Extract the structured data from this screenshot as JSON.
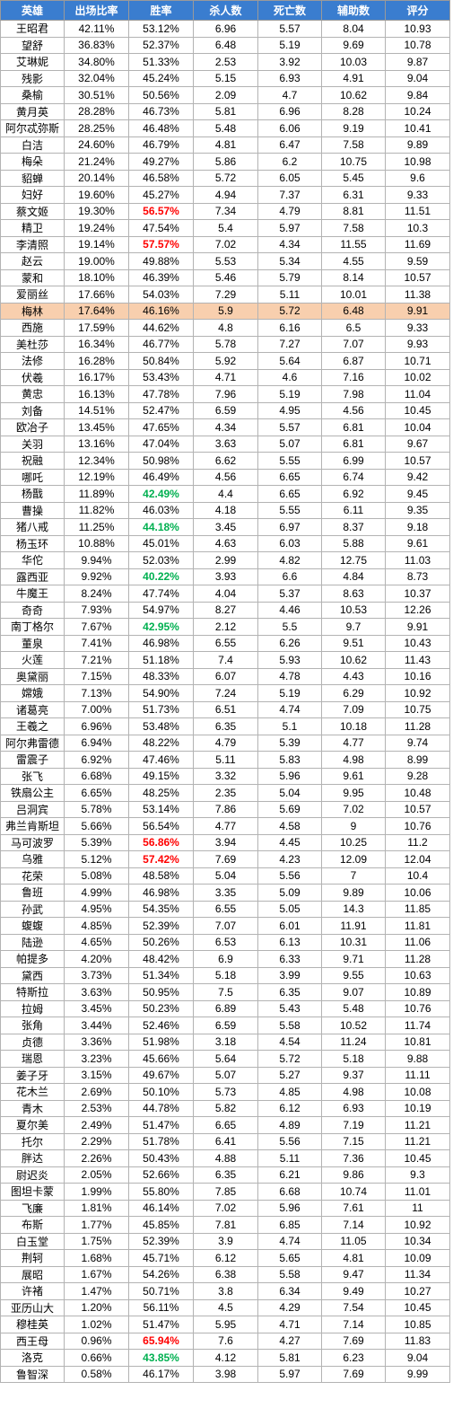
{
  "table": {
    "headers": [
      "英雄",
      "出场比率",
      "胜率",
      "杀人数",
      "死亡数",
      "辅助数",
      "评分"
    ],
    "highlight_color": "#f8cfae",
    "red_text_color": "#ff0000",
    "green_text_color": "#00b050",
    "rows": [
      {
        "cells": [
          "王昭君",
          "42.11%",
          "53.12%",
          "6.96",
          "5.57",
          "8.04",
          "10.93"
        ]
      },
      {
        "cells": [
          "望舒",
          "36.83%",
          "52.37%",
          "6.48",
          "5.19",
          "9.69",
          "10.78"
        ]
      },
      {
        "cells": [
          "艾琳妮",
          "34.80%",
          "51.33%",
          "2.53",
          "3.92",
          "10.03",
          "9.87"
        ]
      },
      {
        "cells": [
          "残影",
          "32.04%",
          "45.24%",
          "5.15",
          "6.93",
          "4.91",
          "9.04"
        ]
      },
      {
        "cells": [
          "桑榆",
          "30.51%",
          "50.56%",
          "2.09",
          "4.7",
          "10.62",
          "9.84"
        ]
      },
      {
        "cells": [
          "黄月英",
          "28.28%",
          "46.73%",
          "5.81",
          "6.96",
          "8.28",
          "10.24"
        ]
      },
      {
        "cells": [
          "阿尔忒弥斯",
          "28.25%",
          "46.48%",
          "5.48",
          "6.06",
          "9.19",
          "10.41"
        ]
      },
      {
        "cells": [
          "白洁",
          "24.60%",
          "46.79%",
          "4.81",
          "6.47",
          "7.58",
          "9.89"
        ]
      },
      {
        "cells": [
          "梅朵",
          "21.24%",
          "49.27%",
          "5.86",
          "6.2",
          "10.75",
          "10.98"
        ]
      },
      {
        "cells": [
          "貂蝉",
          "20.14%",
          "46.58%",
          "5.72",
          "6.05",
          "5.45",
          "9.6"
        ]
      },
      {
        "cells": [
          "妇好",
          "19.60%",
          "45.27%",
          "4.94",
          "7.37",
          "6.31",
          "9.33"
        ]
      },
      {
        "cells": [
          "蔡文姬",
          "19.30%",
          "56.57%",
          "7.34",
          "4.79",
          "8.81",
          "11.51"
        ],
        "winrate_color": "red"
      },
      {
        "cells": [
          "精卫",
          "19.24%",
          "47.54%",
          "5.4",
          "5.97",
          "7.58",
          "10.3"
        ]
      },
      {
        "cells": [
          "李清照",
          "19.14%",
          "57.57%",
          "7.02",
          "4.34",
          "11.55",
          "11.69"
        ],
        "winrate_color": "red"
      },
      {
        "cells": [
          "赵云",
          "19.00%",
          "49.88%",
          "5.53",
          "5.34",
          "4.55",
          "9.59"
        ]
      },
      {
        "cells": [
          "蒙和",
          "18.10%",
          "46.39%",
          "5.46",
          "5.79",
          "8.14",
          "10.57"
        ]
      },
      {
        "cells": [
          "爱丽丝",
          "17.66%",
          "54.03%",
          "7.29",
          "5.11",
          "10.01",
          "11.38"
        ]
      },
      {
        "cells": [
          "梅林",
          "17.64%",
          "46.16%",
          "5.9",
          "5.72",
          "6.48",
          "9.91"
        ],
        "highlight": true
      },
      {
        "cells": [
          "西施",
          "17.59%",
          "44.62%",
          "4.8",
          "6.16",
          "6.5",
          "9.33"
        ]
      },
      {
        "cells": [
          "美杜莎",
          "16.34%",
          "46.77%",
          "5.78",
          "7.27",
          "7.07",
          "9.93"
        ]
      },
      {
        "cells": [
          "法修",
          "16.28%",
          "50.84%",
          "5.92",
          "5.64",
          "6.87",
          "10.71"
        ]
      },
      {
        "cells": [
          "伏羲",
          "16.17%",
          "53.43%",
          "4.71",
          "4.6",
          "7.16",
          "10.02"
        ]
      },
      {
        "cells": [
          "黄忠",
          "16.13%",
          "47.78%",
          "7.96",
          "5.19",
          "7.98",
          "11.04"
        ]
      },
      {
        "cells": [
          "刘备",
          "14.51%",
          "52.47%",
          "6.59",
          "4.95",
          "4.56",
          "10.45"
        ]
      },
      {
        "cells": [
          "欧冶子",
          "13.45%",
          "47.65%",
          "4.34",
          "5.57",
          "6.81",
          "10.04"
        ]
      },
      {
        "cells": [
          "关羽",
          "13.16%",
          "47.04%",
          "3.63",
          "5.07",
          "6.81",
          "9.67"
        ]
      },
      {
        "cells": [
          "祝融",
          "12.34%",
          "50.98%",
          "6.62",
          "5.55",
          "6.99",
          "10.57"
        ]
      },
      {
        "cells": [
          "哪吒",
          "12.19%",
          "46.49%",
          "4.56",
          "6.65",
          "6.74",
          "9.42"
        ]
      },
      {
        "cells": [
          "杨戬",
          "11.89%",
          "42.49%",
          "4.4",
          "6.65",
          "6.92",
          "9.45"
        ],
        "winrate_color": "green"
      },
      {
        "cells": [
          "曹操",
          "11.82%",
          "46.03%",
          "4.18",
          "5.55",
          "6.11",
          "9.35"
        ]
      },
      {
        "cells": [
          "猪八戒",
          "11.25%",
          "44.18%",
          "3.45",
          "6.97",
          "8.37",
          "9.18"
        ],
        "winrate_color": "green"
      },
      {
        "cells": [
          "杨玉环",
          "10.88%",
          "45.01%",
          "4.63",
          "6.03",
          "5.88",
          "9.61"
        ]
      },
      {
        "cells": [
          "华佗",
          "9.94%",
          "52.03%",
          "2.99",
          "4.82",
          "12.75",
          "11.03"
        ]
      },
      {
        "cells": [
          "露西亚",
          "9.92%",
          "40.22%",
          "3.93",
          "6.6",
          "4.84",
          "8.73"
        ],
        "winrate_color": "green"
      },
      {
        "cells": [
          "牛魔王",
          "8.24%",
          "47.74%",
          "4.04",
          "5.37",
          "8.63",
          "10.37"
        ]
      },
      {
        "cells": [
          "奇奇",
          "7.93%",
          "54.97%",
          "8.27",
          "4.46",
          "10.53",
          "12.26"
        ]
      },
      {
        "cells": [
          "南丁格尔",
          "7.67%",
          "42.95%",
          "2.12",
          "5.5",
          "9.7",
          "9.91"
        ],
        "winrate_color": "green"
      },
      {
        "cells": [
          "董泉",
          "7.41%",
          "46.98%",
          "6.55",
          "6.26",
          "9.51",
          "10.43"
        ]
      },
      {
        "cells": [
          "火莲",
          "7.21%",
          "51.18%",
          "7.4",
          "5.93",
          "10.62",
          "11.43"
        ]
      },
      {
        "cells": [
          "奥黛丽",
          "7.15%",
          "48.33%",
          "6.07",
          "4.78",
          "4.43",
          "10.16"
        ]
      },
      {
        "cells": [
          "嫦娥",
          "7.13%",
          "54.90%",
          "7.24",
          "5.19",
          "6.29",
          "10.92"
        ]
      },
      {
        "cells": [
          "诸葛亮",
          "7.00%",
          "51.73%",
          "6.51",
          "4.74",
          "7.09",
          "10.75"
        ]
      },
      {
        "cells": [
          "王羲之",
          "6.96%",
          "53.48%",
          "6.35",
          "5.1",
          "10.18",
          "11.28"
        ]
      },
      {
        "cells": [
          "阿尔弗雷德",
          "6.94%",
          "48.22%",
          "4.79",
          "5.39",
          "4.77",
          "9.74"
        ]
      },
      {
        "cells": [
          "雷震子",
          "6.92%",
          "47.46%",
          "5.11",
          "5.83",
          "4.98",
          "8.99"
        ]
      },
      {
        "cells": [
          "张飞",
          "6.68%",
          "49.15%",
          "3.32",
          "5.96",
          "9.61",
          "9.28"
        ]
      },
      {
        "cells": [
          "铁扇公主",
          "6.65%",
          "48.25%",
          "2.35",
          "5.04",
          "9.95",
          "10.48"
        ]
      },
      {
        "cells": [
          "吕洞宾",
          "5.78%",
          "53.14%",
          "7.86",
          "5.69",
          "7.02",
          "10.57"
        ]
      },
      {
        "cells": [
          "弗兰肯斯坦",
          "5.66%",
          "56.54%",
          "4.77",
          "4.58",
          "9",
          "10.76"
        ]
      },
      {
        "cells": [
          "马可波罗",
          "5.39%",
          "56.86%",
          "3.94",
          "4.45",
          "10.25",
          "11.2"
        ],
        "winrate_color": "red"
      },
      {
        "cells": [
          "乌雅",
          "5.12%",
          "57.42%",
          "7.69",
          "4.23",
          "12.09",
          "12.04"
        ],
        "winrate_color": "red"
      },
      {
        "cells": [
          "花荣",
          "5.08%",
          "48.58%",
          "5.04",
          "5.56",
          "7",
          "10.4"
        ]
      },
      {
        "cells": [
          "鲁班",
          "4.99%",
          "46.98%",
          "3.35",
          "5.09",
          "9.89",
          "10.06"
        ]
      },
      {
        "cells": [
          "孙武",
          "4.95%",
          "54.35%",
          "6.55",
          "5.05",
          "14.3",
          "11.85"
        ]
      },
      {
        "cells": [
          "蝮蝮",
          "4.85%",
          "52.39%",
          "7.07",
          "6.01",
          "11.91",
          "11.81"
        ]
      },
      {
        "cells": [
          "陆逊",
          "4.65%",
          "50.26%",
          "6.53",
          "6.13",
          "10.31",
          "11.06"
        ]
      },
      {
        "cells": [
          "帕提多",
          "4.20%",
          "48.42%",
          "6.9",
          "6.33",
          "9.71",
          "11.28"
        ]
      },
      {
        "cells": [
          "黛西",
          "3.73%",
          "51.34%",
          "5.18",
          "3.99",
          "9.55",
          "10.63"
        ]
      },
      {
        "cells": [
          "特斯拉",
          "3.63%",
          "50.95%",
          "7.5",
          "6.35",
          "9.07",
          "10.89"
        ]
      },
      {
        "cells": [
          "拉姆",
          "3.45%",
          "50.23%",
          "6.89",
          "5.43",
          "5.48",
          "10.76"
        ]
      },
      {
        "cells": [
          "张角",
          "3.44%",
          "52.46%",
          "6.59",
          "5.58",
          "10.52",
          "11.74"
        ]
      },
      {
        "cells": [
          "贞德",
          "3.36%",
          "51.98%",
          "3.18",
          "4.54",
          "11.24",
          "10.81"
        ]
      },
      {
        "cells": [
          "瑞恩",
          "3.23%",
          "45.66%",
          "5.64",
          "5.72",
          "5.18",
          "9.88"
        ]
      },
      {
        "cells": [
          "姜子牙",
          "3.15%",
          "49.67%",
          "5.07",
          "5.27",
          "9.37",
          "11.11"
        ]
      },
      {
        "cells": [
          "花木兰",
          "2.69%",
          "50.10%",
          "5.73",
          "4.85",
          "4.98",
          "10.08"
        ]
      },
      {
        "cells": [
          "青木",
          "2.53%",
          "44.78%",
          "5.82",
          "6.12",
          "6.93",
          "10.19"
        ]
      },
      {
        "cells": [
          "夏尔美",
          "2.49%",
          "51.47%",
          "6.65",
          "4.89",
          "7.19",
          "11.21"
        ]
      },
      {
        "cells": [
          "托尔",
          "2.29%",
          "51.78%",
          "6.41",
          "5.56",
          "7.15",
          "11.21"
        ]
      },
      {
        "cells": [
          "胖达",
          "2.26%",
          "50.43%",
          "4.88",
          "5.11",
          "7.36",
          "10.45"
        ]
      },
      {
        "cells": [
          "尉迟炎",
          "2.05%",
          "52.66%",
          "6.35",
          "6.21",
          "9.86",
          "9.3"
        ]
      },
      {
        "cells": [
          "图坦卡蒙",
          "1.99%",
          "55.80%",
          "7.85",
          "6.68",
          "10.74",
          "11.01"
        ]
      },
      {
        "cells": [
          "飞廉",
          "1.81%",
          "46.14%",
          "7.02",
          "5.96",
          "7.61",
          "11"
        ]
      },
      {
        "cells": [
          "布斯",
          "1.77%",
          "45.85%",
          "7.81",
          "6.85",
          "7.14",
          "10.92"
        ]
      },
      {
        "cells": [
          "白玉堂",
          "1.75%",
          "52.39%",
          "3.9",
          "4.74",
          "11.05",
          "10.34"
        ]
      },
      {
        "cells": [
          "荆轲",
          "1.68%",
          "45.71%",
          "6.12",
          "5.65",
          "4.81",
          "10.09"
        ]
      },
      {
        "cells": [
          "展昭",
          "1.67%",
          "54.26%",
          "6.38",
          "5.58",
          "9.47",
          "11.34"
        ]
      },
      {
        "cells": [
          "许褚",
          "1.47%",
          "50.71%",
          "3.8",
          "6.34",
          "9.49",
          "10.27"
        ]
      },
      {
        "cells": [
          "亚历山大",
          "1.20%",
          "56.11%",
          "4.5",
          "4.29",
          "7.54",
          "10.45"
        ]
      },
      {
        "cells": [
          "穆桂英",
          "1.02%",
          "51.47%",
          "5.95",
          "4.71",
          "7.14",
          "10.85"
        ]
      },
      {
        "cells": [
          "西王母",
          "0.96%",
          "65.94%",
          "7.6",
          "4.27",
          "7.69",
          "11.83"
        ],
        "winrate_color": "red"
      },
      {
        "cells": [
          "洛克",
          "0.66%",
          "43.85%",
          "4.12",
          "5.81",
          "6.23",
          "9.04"
        ],
        "winrate_color": "green"
      },
      {
        "cells": [
          "鲁智深",
          "0.58%",
          "46.17%",
          "3.98",
          "5.97",
          "7.69",
          "9.99"
        ]
      }
    ]
  }
}
